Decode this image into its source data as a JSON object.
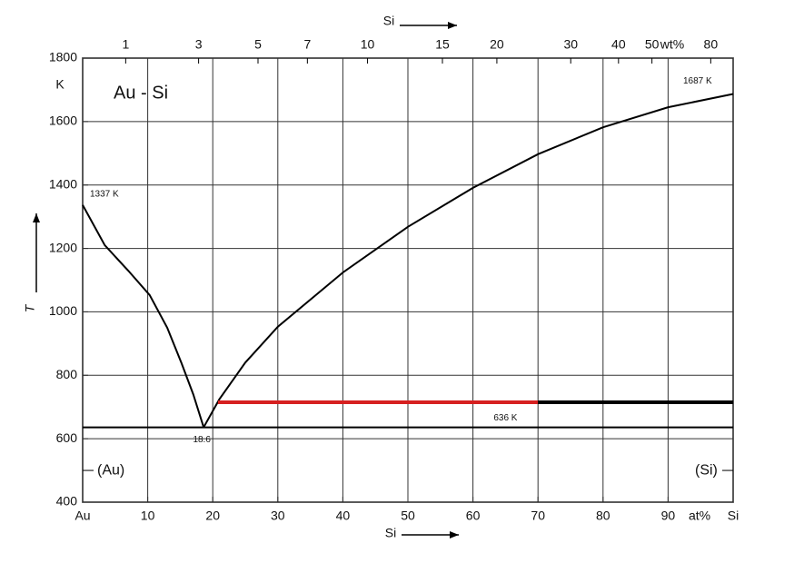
{
  "chart_data": {
    "type": "line",
    "title": "Au - Si",
    "x_label": "Si",
    "x_unit": "at%",
    "x2_label": "Si",
    "x2_unit": "wt%",
    "y_label": "T",
    "y_unit": "K",
    "xlim": [
      0,
      100
    ],
    "xticks": [
      {
        "value": 0,
        "label": "Au"
      },
      10,
      20,
      30,
      40,
      50,
      60,
      70,
      80,
      90,
      {
        "value": 100,
        "label": "Si"
      }
    ],
    "x2ticks": [
      1,
      3,
      5,
      7,
      10,
      15,
      20,
      30,
      40,
      50,
      80
    ],
    "ylim": [
      400,
      1800
    ],
    "yticks": [
      400,
      600,
      800,
      1000,
      1200,
      1400,
      1600,
      1800
    ],
    "grid": true,
    "series": [
      {
        "color": "#000000",
        "x": [
          0,
          3.4,
          7,
          10.3,
          13,
          15.2,
          17,
          18.6
        ],
        "values": [
          1337,
          1210,
          1130,
          1053,
          950,
          838,
          740,
          636
        ]
      },
      {
        "color": "#000000",
        "x": [
          18.6,
          21,
          25,
          30,
          40,
          50,
          60,
          70,
          80,
          90,
          100
        ],
        "values": [
          636,
          724,
          840,
          953,
          1124,
          1268,
          1391,
          1497,
          1582,
          1645,
          1687
        ]
      },
      {
        "color": "#000000",
        "x": [
          0,
          100
        ],
        "values": [
          636,
          636
        ]
      },
      {
        "color": "#d62020",
        "x": [
          20.8,
          70
        ],
        "values": [
          715,
          715
        ]
      },
      {
        "color": "#000000",
        "x": [
          70,
          100
        ],
        "values": [
          715,
          715
        ]
      }
    ],
    "annotations": [
      "1337 K",
      "1687 K",
      "18.6",
      "636 K",
      "(Au)",
      "(Si)"
    ]
  }
}
